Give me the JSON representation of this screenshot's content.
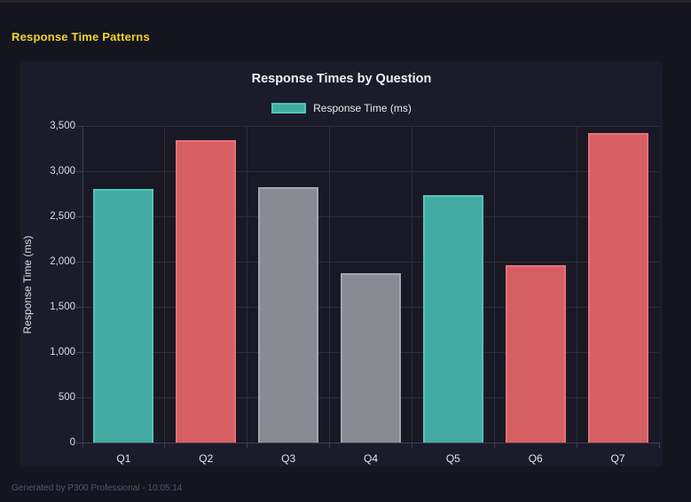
{
  "window": {
    "heading": "Response Time Patterns"
  },
  "footer": {
    "text": "Generated by P300 Professional - 10:05:14"
  },
  "colors": {
    "page_background": "#151520",
    "panel_background": "#1b1b2b",
    "heading_yellow": "#f0d229",
    "grid": "#2d2d3d",
    "axis": "#404052"
  },
  "palette": {
    "teal": {
      "fill": "#42aba2",
      "border": "#53c4ba"
    },
    "red": {
      "fill": "#d65f64",
      "border": "#e97179"
    },
    "gray": {
      "fill": "#8a8a92",
      "border": "#a5a5ad"
    }
  },
  "chart_data": {
    "type": "bar",
    "title": "Response Times by Question",
    "xlabel": "",
    "ylabel": "Response Time (ms)",
    "categories": [
      "Q1",
      "Q2",
      "Q3",
      "Q4",
      "Q5",
      "Q6",
      "Q7"
    ],
    "values": [
      2800,
      3340,
      2820,
      1870,
      2740,
      1960,
      3420
    ],
    "bar_color_names": [
      "teal",
      "red",
      "gray",
      "gray",
      "teal",
      "red",
      "red"
    ],
    "ylim": [
      0,
      3500
    ],
    "ytick_step": 500,
    "ytick_labels": [
      "0",
      "500",
      "1,000",
      "1,500",
      "2,000",
      "2,500",
      "3,000",
      "3,500"
    ],
    "grid": true,
    "legend_position": "top",
    "legend": [
      {
        "label": "Response Time (ms)",
        "color_name": "teal"
      }
    ]
  }
}
